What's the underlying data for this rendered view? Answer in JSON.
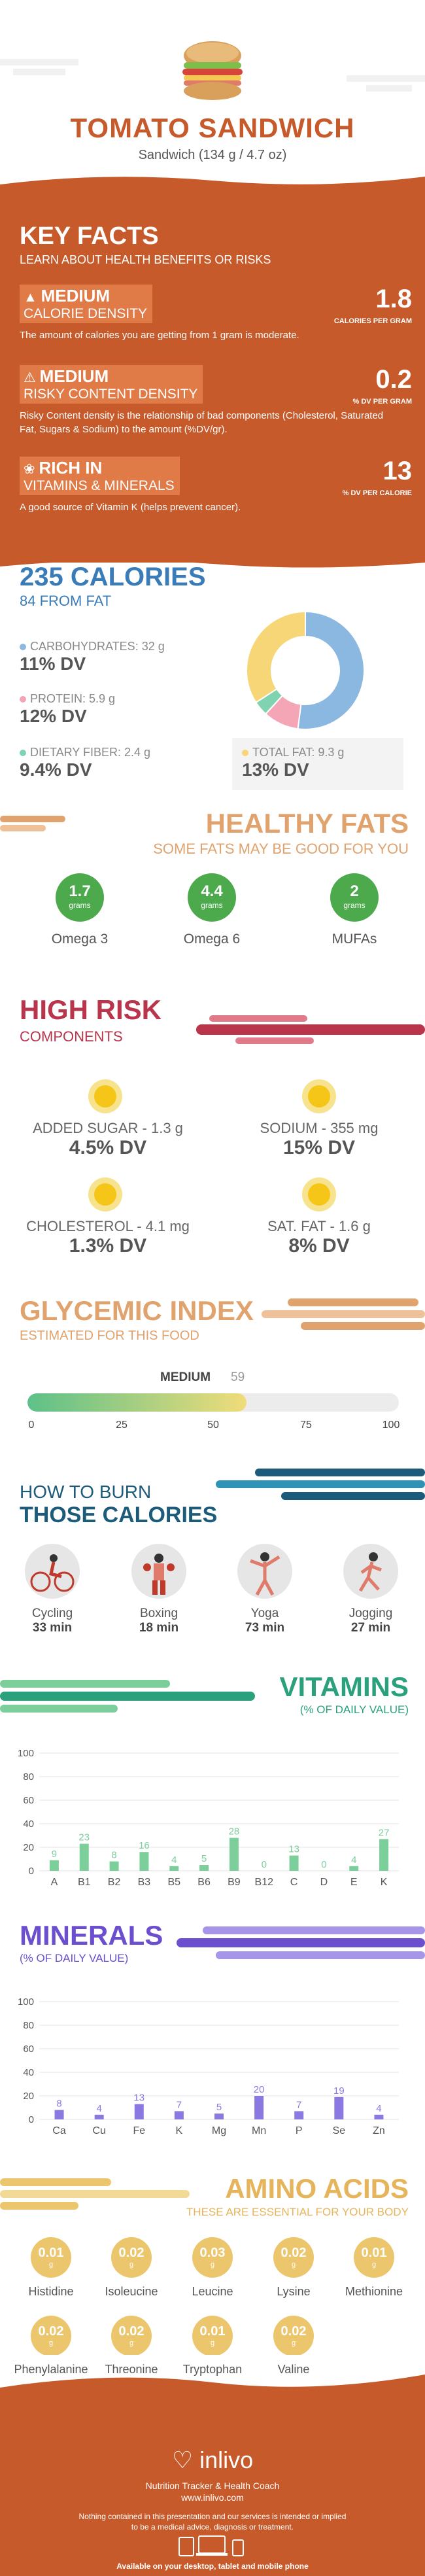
{
  "header": {
    "title": "TOMATO SANDWICH",
    "subtitle": "Sandwich (134 g / 4.7 oz)"
  },
  "key_facts": {
    "title": "KEY FACTS",
    "subtitle": "LEARN ABOUT HEALTH BENEFITS OR RISKS",
    "facts": [
      {
        "level": "MEDIUM",
        "name": "CALORIE DENSITY",
        "value": "1.8",
        "unit": "CALORIES PER GRAM",
        "desc": "The amount of calories you are getting from 1 gram is moderate.",
        "icon": "flame-icon"
      },
      {
        "level": "MEDIUM",
        "name": "RISKY CONTENT DENSITY",
        "value": "0.2",
        "unit": "% DV PER GRAM",
        "desc": "Risky Content density is the relationship of bad components (Cholesterol, Saturated Fat, Sugars & Sodium) to the amount (%DV/gr).",
        "icon": "warning-icon"
      },
      {
        "level": "RICH IN",
        "name": "VITAMINS & MINERALS",
        "value": "13",
        "unit": "% DV PER CALORIE",
        "desc": "A good source of Vitamin K (helps prevent cancer).",
        "icon": "leaf-icon"
      }
    ]
  },
  "calories": {
    "title": "235 CALORIES",
    "subtitle": "84 FROM FAT",
    "carbs": {
      "label": "CARBOHYDRATES: 32 g",
      "dv": "11% DV",
      "color": "#8bb8e0"
    },
    "protein": {
      "label": "PROTEIN: 5.9 g",
      "dv": "12% DV",
      "color": "#f4a6b7"
    },
    "fiber": {
      "label": "DIETARY FIBER: 2.4 g",
      "dv": "9.4% DV",
      "color": "#7fd3b0"
    },
    "fat": {
      "label": "TOTAL FAT: 9.3 g",
      "dv": "13% DV",
      "color": "#f7d677"
    },
    "donut": [
      {
        "name": "carbs",
        "value": 128,
        "color": "#8bb8e0"
      },
      {
        "name": "protein",
        "value": 24,
        "color": "#f4a6b7"
      },
      {
        "name": "fiber",
        "value": 10,
        "color": "#7fd3b0"
      },
      {
        "name": "fat",
        "value": 84,
        "color": "#f7d677"
      }
    ]
  },
  "healthy_fats": {
    "title": "HEALTHY FATS",
    "subtitle": "SOME FATS MAY BE GOOD FOR YOU",
    "items": [
      {
        "value": "1.7",
        "unit": "grams",
        "name": "Omega 3"
      },
      {
        "value": "4.4",
        "unit": "grams",
        "name": "Omega 6"
      },
      {
        "value": "2",
        "unit": "grams",
        "name": "MUFAs"
      }
    ]
  },
  "high_risk": {
    "title": "HIGH RISK",
    "subtitle": "COMPONENTS",
    "items": [
      {
        "label": "ADDED SUGAR - 1.3 g",
        "dv": "4.5% DV"
      },
      {
        "label": "SODIUM - 355 mg",
        "dv": "15% DV"
      },
      {
        "label": "CHOLESTEROL - 4.1 mg",
        "dv": "1.3% DV"
      },
      {
        "label": "SAT. FAT - 1.6 g",
        "dv": "8% DV"
      }
    ]
  },
  "glycemic": {
    "title": "GLYCEMIC INDEX",
    "subtitle": "ESTIMATED FOR THIS FOOD",
    "level": "MEDIUM",
    "value": 59,
    "value_label": "59",
    "ticks": [
      "0",
      "25",
      "50",
      "75",
      "100"
    ]
  },
  "burn": {
    "title_line1": "HOW TO BURN",
    "title_line2": "THOSE CALORIES",
    "activities": [
      {
        "name": "Cycling",
        "minutes": "33 min",
        "icon": "cycling-icon"
      },
      {
        "name": "Boxing",
        "minutes": "18 min",
        "icon": "boxing-icon"
      },
      {
        "name": "Yoga",
        "minutes": "73 min",
        "icon": "yoga-icon"
      },
      {
        "name": "Jogging",
        "minutes": "27 min",
        "icon": "jogging-icon"
      }
    ]
  },
  "vitamins": {
    "title": "VITAMINS",
    "subtitle": "(% OF DAILY VALUE)",
    "chart_data": {
      "type": "bar",
      "categories": [
        "A",
        "B1",
        "B2",
        "B3",
        "B5",
        "B6",
        "B9",
        "B12",
        "C",
        "D",
        "E",
        "K"
      ],
      "values": [
        9,
        23,
        8,
        16,
        4,
        5,
        28,
        0,
        13,
        0,
        4,
        27
      ],
      "labels": [
        "9",
        "23",
        "8",
        "16",
        "4",
        "5",
        "28",
        "0",
        "13",
        "0",
        "4",
        "27"
      ],
      "ylim": [
        0,
        100
      ],
      "yticks": [
        "0",
        "20",
        "40",
        "60",
        "80",
        "100"
      ],
      "color": "#7ccf9b"
    }
  },
  "minerals": {
    "title": "MINERALS",
    "subtitle": "(% OF DAILY VALUE)",
    "chart_data": {
      "type": "bar",
      "categories": [
        "Ca",
        "Cu",
        "Fe",
        "K",
        "Mg",
        "Mn",
        "P",
        "Se",
        "Zn"
      ],
      "values": [
        8,
        4,
        13,
        7,
        5,
        20,
        7,
        19,
        4
      ],
      "labels": [
        "8",
        "4",
        "13",
        "7",
        "5",
        "20",
        "7",
        "19",
        "4"
      ],
      "ylim": [
        0,
        100
      ],
      "yticks": [
        "0",
        "20",
        "40",
        "60",
        "80",
        "100"
      ],
      "color": "#8b78e0"
    }
  },
  "amino": {
    "title": "AMINO ACIDS",
    "subtitle": "THESE ARE ESSENTIAL FOR YOUR BODY",
    "items": [
      {
        "value": "0.01",
        "unit": "g",
        "name": "Histidine"
      },
      {
        "value": "0.02",
        "unit": "g",
        "name": "Isoleucine"
      },
      {
        "value": "0.03",
        "unit": "g",
        "name": "Leucine"
      },
      {
        "value": "0.02",
        "unit": "g",
        "name": "Lysine"
      },
      {
        "value": "0.01",
        "unit": "g",
        "name": "Methionine"
      },
      {
        "value": "0.02",
        "unit": "g",
        "name": "Phenylalanine"
      },
      {
        "value": "0.02",
        "unit": "g",
        "name": "Threonine"
      },
      {
        "value": "0.01",
        "unit": "g",
        "name": "Tryptophan"
      },
      {
        "value": "0.02",
        "unit": "g",
        "name": "Valine"
      }
    ]
  },
  "footer": {
    "brand": "inlivo",
    "tagline": "Nutrition Tracker & Health Coach",
    "url": "www.inlivo.com",
    "disclaimer1": "Nothing contained in this presentation and our services is intended or implied",
    "disclaimer2": "to be a medical advice, diagnosis or treatment.",
    "available": "Available on your desktop, tablet and mobile phone"
  }
}
